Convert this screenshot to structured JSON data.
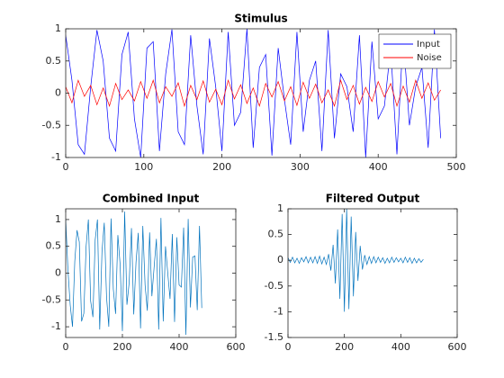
{
  "chart_data": [
    {
      "type": "line",
      "title": "Stimulus",
      "x": [
        0,
        8,
        16,
        24,
        32,
        40,
        48,
        56,
        64,
        72,
        80,
        88,
        96,
        104,
        112,
        120,
        128,
        136,
        144,
        152,
        160,
        168,
        176,
        184,
        192,
        200,
        208,
        216,
        224,
        232,
        240,
        248,
        256,
        264,
        272,
        280,
        288,
        296,
        304,
        312,
        320,
        328,
        336,
        344,
        352,
        360,
        368,
        376,
        384,
        392,
        400,
        408,
        416,
        424,
        432,
        440,
        448,
        456,
        464,
        472,
        480
      ],
      "series": [
        {
          "name": "Input",
          "color": "#0000ff",
          "values": [
            0.9,
            0.2,
            -0.8,
            -0.95,
            0.1,
            0.98,
            0.5,
            -0.7,
            -0.9,
            0.6,
            0.95,
            -0.4,
            -1,
            0.7,
            0.8,
            -0.9,
            0.3,
            0.99,
            -0.6,
            -0.8,
            0.9,
            -0.2,
            -0.95,
            0.85,
            0.1,
            -0.9,
            0.95,
            -0.5,
            -0.3,
            1,
            -0.85,
            0.4,
            0.6,
            -0.97,
            0.7,
            -0.1,
            -0.8,
            0.95,
            -0.6,
            0.2,
            0.5,
            -0.9,
            0.98,
            -0.7,
            0.3,
            0.1,
            -0.6,
            0.9,
            -1,
            0.8,
            -0.4,
            -0.2,
            0.7,
            -0.95,
            0.9,
            -0.5,
            0.1,
            0.4,
            -0.85,
            0.99,
            -0.7
          ]
        },
        {
          "name": "Noise",
          "color": "#ff0000",
          "values": [
            0.1,
            -0.15,
            0.2,
            -0.05,
            0.12,
            -0.18,
            0.08,
            -0.2,
            0.15,
            -0.1,
            0.05,
            -0.12,
            0.18,
            -0.08,
            0.2,
            -0.15,
            0.1,
            -0.05,
            0.16,
            -0.2,
            0.12,
            -0.1,
            0.19,
            -0.14,
            0.06,
            -0.18,
            0.2,
            -0.09,
            0.13,
            -0.16,
            0.08,
            -0.2,
            0.15,
            -0.06,
            0.18,
            -0.12,
            0.1,
            -0.19,
            0.17,
            -0.08,
            0.14,
            -0.15,
            0.05,
            -0.2,
            0.2,
            -0.1,
            0.12,
            -0.17,
            0.09,
            -0.13,
            0.18,
            -0.06,
            0.15,
            -0.2,
            0.11,
            -0.14,
            0.2,
            -0.08,
            0.16,
            -0.11,
            0.05
          ]
        }
      ],
      "xlim": [
        0,
        500
      ],
      "xticks": [
        0,
        100,
        200,
        300,
        400,
        500
      ],
      "ylim": [
        -1,
        1
      ],
      "yticks": [
        -1,
        -0.5,
        0,
        0.5,
        1
      ],
      "legend": "upper right"
    },
    {
      "type": "line",
      "title": "Combined Input",
      "x": [
        0,
        8,
        16,
        24,
        32,
        40,
        48,
        56,
        64,
        72,
        80,
        88,
        96,
        104,
        112,
        120,
        128,
        136,
        144,
        152,
        160,
        168,
        176,
        184,
        192,
        200,
        208,
        216,
        224,
        232,
        240,
        248,
        256,
        264,
        272,
        280,
        288,
        296,
        304,
        312,
        320,
        328,
        336,
        344,
        352,
        360,
        368,
        376,
        384,
        392,
        400,
        408,
        416,
        424,
        432,
        440,
        448,
        456,
        464,
        472,
        480
      ],
      "series": [
        {
          "color": "#0072bd",
          "values": [
            1.0,
            0.05,
            -0.6,
            -1.0,
            0.22,
            0.8,
            0.58,
            -0.9,
            -0.75,
            0.5,
            1.0,
            -0.52,
            -0.82,
            0.62,
            1.0,
            -1.05,
            0.4,
            0.94,
            -0.44,
            -1.0,
            1.02,
            -0.3,
            -0.76,
            0.71,
            0.16,
            -1.08,
            1.15,
            -0.59,
            -0.17,
            0.84,
            -0.77,
            0.2,
            0.75,
            -1.03,
            0.88,
            -0.22,
            -0.7,
            0.76,
            -0.43,
            0.12,
            0.64,
            -1.05,
            1.03,
            -0.9,
            0.5,
            0.0,
            -0.48,
            0.73,
            -0.91,
            0.67,
            -0.22,
            -0.26,
            0.85,
            -1.15,
            1.01,
            -0.64,
            0.3,
            0.32,
            -0.69,
            0.88,
            -0.65
          ]
        }
      ],
      "xlim": [
        0,
        600
      ],
      "xticks": [
        0,
        200,
        400,
        600
      ],
      "ylim": [
        -1.2,
        1.2
      ],
      "yticks": [
        -1,
        -0.5,
        0,
        0.5,
        1
      ]
    },
    {
      "type": "line",
      "title": "Filtered Output",
      "x": [
        0,
        8,
        16,
        24,
        32,
        40,
        48,
        56,
        64,
        72,
        80,
        88,
        96,
        104,
        112,
        120,
        128,
        136,
        144,
        152,
        160,
        168,
        176,
        184,
        192,
        200,
        208,
        216,
        224,
        232,
        240,
        248,
        256,
        264,
        272,
        280,
        288,
        296,
        304,
        312,
        320,
        328,
        336,
        344,
        352,
        360,
        368,
        376,
        384,
        392,
        400,
        408,
        416,
        424,
        432,
        440,
        448,
        456,
        464,
        472,
        480
      ],
      "series": [
        {
          "color": "#0072bd",
          "values": [
            0.05,
            -0.04,
            0.06,
            -0.05,
            0.04,
            -0.06,
            0.05,
            -0.03,
            0.07,
            -0.05,
            0.06,
            -0.05,
            0.07,
            -0.06,
            0.08,
            -0.07,
            0.06,
            -0.08,
            0.12,
            -0.2,
            0.3,
            -0.45,
            0.6,
            -0.75,
            0.9,
            -1.0,
            1.0,
            -0.95,
            0.85,
            -0.7,
            0.55,
            -0.4,
            0.28,
            -0.18,
            0.1,
            -0.08,
            0.07,
            -0.06,
            0.07,
            -0.05,
            0.06,
            -0.04,
            0.05,
            -0.06,
            0.04,
            -0.05,
            0.06,
            -0.04,
            0.05,
            -0.03,
            0.04,
            -0.05,
            0.06,
            -0.04,
            0.05,
            -0.06,
            0.04,
            -0.05,
            0.03,
            -0.04,
            0.02
          ]
        }
      ],
      "xlim": [
        0,
        600
      ],
      "xticks": [
        0,
        200,
        400,
        600
      ],
      "ylim": [
        -1.5,
        1
      ],
      "yticks": [
        -1.5,
        -1,
        -0.5,
        0,
        0.5,
        1
      ]
    }
  ]
}
